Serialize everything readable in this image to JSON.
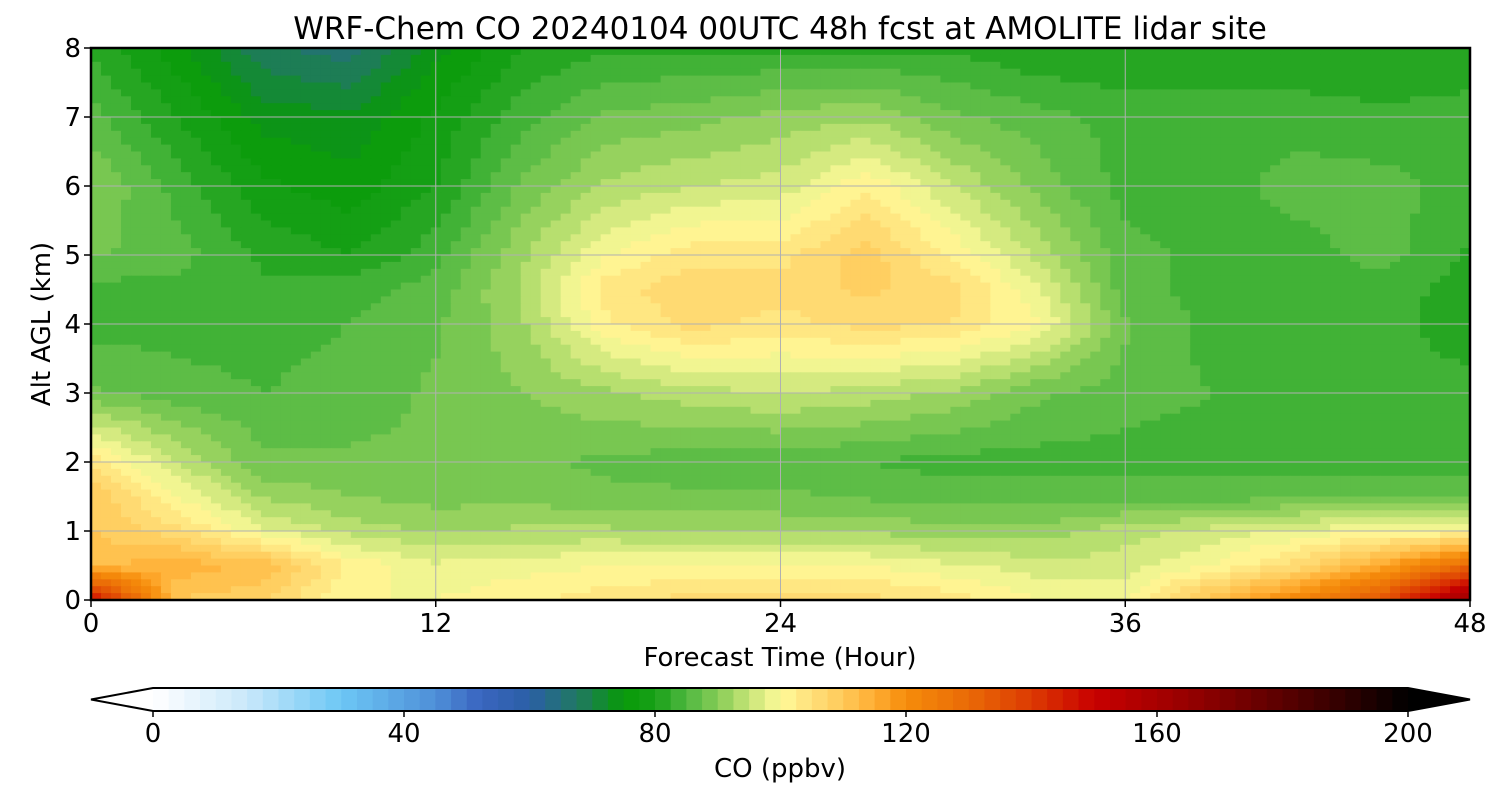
{
  "chart_data": {
    "type": "heatmap",
    "title": "WRF-Chem CO  20240104 00UTC 48h fcst at AMOLITE lidar site",
    "xlabel": "Forecast Time (Hour)",
    "ylabel": "Alt AGL (km)",
    "xlim": [
      0,
      48
    ],
    "ylim": [
      0,
      8
    ],
    "xticks": [
      "0",
      "12",
      "24",
      "36",
      "48"
    ],
    "yticks": [
      "0",
      "1",
      "2",
      "3",
      "4",
      "5",
      "6",
      "7",
      "8"
    ],
    "grid": true,
    "x": [
      0,
      3,
      6,
      9,
      12,
      15,
      18,
      21,
      24,
      27,
      30,
      33,
      36,
      39,
      42,
      45,
      48
    ],
    "y": [
      0,
      0.5,
      1,
      1.5,
      2,
      3,
      4,
      4.5,
      5,
      6,
      7,
      8
    ],
    "z": [
      [
        150,
        110,
        108,
        100,
        100,
        102,
        104,
        106,
        106,
        106,
        104,
        100,
        100,
        112,
        122,
        135,
        165
      ],
      [
        112,
        114,
        112,
        102,
        98,
        99,
        100,
        100,
        100,
        100,
        98,
        96,
        96,
        100,
        106,
        116,
        130
      ],
      [
        110,
        106,
        98,
        94,
        92,
        93,
        93,
        92,
        92,
        92,
        91,
        91,
        94,
        96,
        98,
        100,
        100
      ],
      [
        110,
        100,
        92,
        90,
        89,
        89,
        88,
        88,
        88,
        87,
        86,
        86,
        86,
        86,
        87,
        87,
        87
      ],
      [
        104,
        95,
        88,
        88,
        88,
        88,
        87,
        86,
        86,
        85,
        84,
        84,
        84,
        84,
        84,
        84,
        84
      ],
      [
        88,
        86,
        85,
        86,
        88,
        90,
        92,
        94,
        95,
        94,
        92,
        88,
        86,
        85,
        84,
        84,
        84
      ],
      [
        84,
        84,
        84,
        85,
        87,
        92,
        102,
        106,
        104,
        106,
        105,
        100,
        88,
        84,
        84,
        84,
        80
      ],
      [
        84,
        84,
        83,
        84,
        86,
        93,
        104,
        107,
        106,
        108,
        106,
        98,
        86,
        84,
        84,
        84,
        81
      ],
      [
        88,
        86,
        82,
        80,
        84,
        92,
        100,
        104,
        104,
        109,
        102,
        94,
        86,
        84,
        84,
        86,
        82
      ],
      [
        90,
        84,
        78,
        76,
        80,
        88,
        93,
        95,
        96,
        102,
        95,
        89,
        84,
        84,
        86,
        86,
        84
      ],
      [
        86,
        80,
        74,
        73,
        78,
        84,
        88,
        89,
        91,
        92,
        88,
        86,
        84,
        84,
        84,
        83,
        84
      ],
      [
        82,
        76,
        68,
        66,
        74,
        80,
        82,
        82,
        82,
        82,
        82,
        80,
        80,
        80,
        80,
        80,
        80
      ]
    ],
    "colorbar": {
      "label": "CO  (ppbv)",
      "min": 0,
      "max": 200,
      "ticks": [
        "0",
        "40",
        "80",
        "120",
        "160",
        "200"
      ],
      "extend": "both",
      "colors": [
        [
          0,
          "#ffffff"
        ],
        [
          15,
          "#c9e8fa"
        ],
        [
          30,
          "#6cc7f5"
        ],
        [
          45,
          "#4f8fd8"
        ],
        [
          52,
          "#3a65c0"
        ],
        [
          60,
          "#2b5fa6"
        ],
        [
          68,
          "#1f7a5e"
        ],
        [
          75,
          "#089a08"
        ],
        [
          80,
          "#18a018"
        ],
        [
          85,
          "#4fb840"
        ],
        [
          90,
          "#86cc56"
        ],
        [
          95,
          "#c7e577"
        ],
        [
          100,
          "#fffa9a"
        ],
        [
          105,
          "#ffe07a"
        ],
        [
          110,
          "#ffc958"
        ],
        [
          115,
          "#ffad33"
        ],
        [
          120,
          "#f58c0a"
        ],
        [
          130,
          "#ea6a06"
        ],
        [
          140,
          "#dc3a02"
        ],
        [
          150,
          "#c80000"
        ],
        [
          165,
          "#960000"
        ],
        [
          180,
          "#5a0000"
        ],
        [
          190,
          "#300000"
        ],
        [
          200,
          "#000000"
        ]
      ]
    }
  }
}
